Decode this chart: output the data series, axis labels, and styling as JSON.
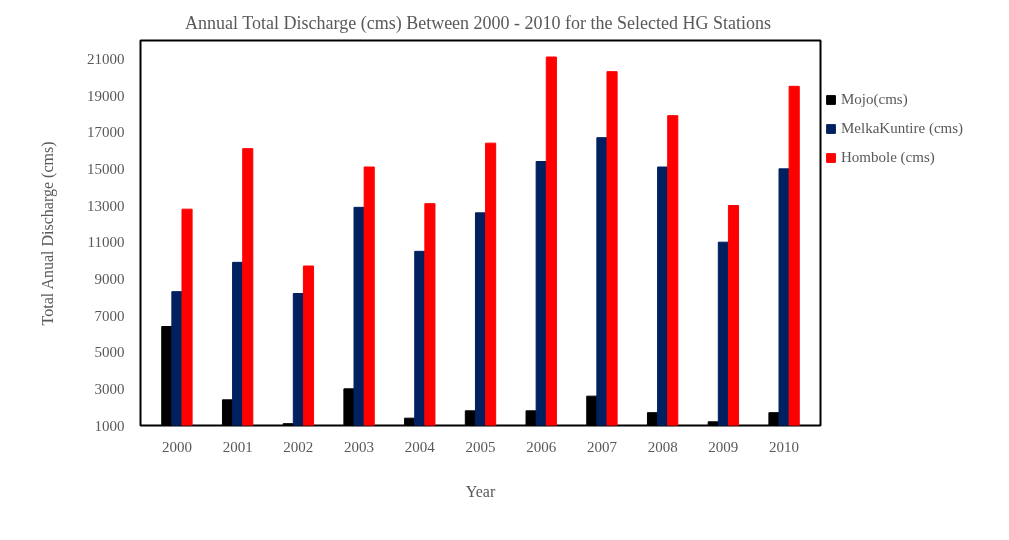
{
  "chart_data": {
    "type": "bar",
    "title": "Annual Total Discharge (cms) Between 2000 - 2010  for the Selected HG Stations",
    "xlabel": "Year",
    "ylabel": "Total Anual Discharge (cms)",
    "categories": [
      "2000",
      "2001",
      "2002",
      "2003",
      "2004",
      "2005",
      "2006",
      "2007",
      "2008",
      "2009",
      "2010"
    ],
    "series": [
      {
        "name": "Mojo(cms)",
        "color": "#000000",
        "values": [
          6400,
          2400,
          1100,
          3000,
          1400,
          1800,
          1800,
          2600,
          1700,
          1200,
          1700
        ]
      },
      {
        "name": "MelkaKuntire (cms)",
        "color": "#002060",
        "values": [
          8300,
          9900,
          8200,
          12900,
          10500,
          12600,
          15400,
          16700,
          15100,
          11000,
          15000
        ]
      },
      {
        "name": "Hombole (cms)",
        "color": "#ff0000",
        "values": [
          12800,
          16100,
          9700,
          15100,
          13100,
          16400,
          21100,
          20300,
          17900,
          13000,
          19500
        ]
      }
    ],
    "ylim": [
      1000,
      22000
    ],
    "yticks": [
      1000,
      3000,
      5000,
      7000,
      9000,
      11000,
      13000,
      15000,
      17000,
      19000,
      21000
    ],
    "grid": false,
    "legend": "right"
  }
}
